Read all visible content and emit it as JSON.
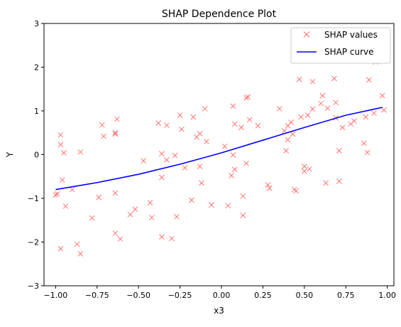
{
  "chart_data": {
    "type": "scatter",
    "title": "SHAP Dependence Plot",
    "xlabel": "x3",
    "ylabel": "Y",
    "xlim": [
      -1.07,
      1.04
    ],
    "ylim": [
      -3,
      3
    ],
    "xticks": [
      -1.0,
      -0.75,
      -0.5,
      -0.25,
      0.0,
      0.25,
      0.5,
      0.75,
      1.0
    ],
    "xtick_labels": [
      "−1.00",
      "−0.75",
      "−0.50",
      "−0.25",
      "0.00",
      "0.25",
      "0.50",
      "0.75",
      "1.00"
    ],
    "yticks": [
      -3,
      -2,
      -1,
      0,
      1,
      2,
      3
    ],
    "ytick_labels": [
      "−3",
      "−2",
      "−1",
      "0",
      "1",
      "2",
      "3"
    ],
    "grid": false,
    "legend_position": "top-right",
    "series": [
      {
        "name": "SHAP values",
        "kind": "scatter",
        "marker": "x",
        "color": "#ff6666",
        "points": [
          [
            -0.99,
            -0.9
          ],
          [
            -1.0,
            -0.92
          ],
          [
            -0.97,
            0.45
          ],
          [
            -0.97,
            0.23
          ],
          [
            -0.96,
            -0.58
          ],
          [
            -0.95,
            0.04
          ],
          [
            -0.94,
            -1.18
          ],
          [
            -0.97,
            -2.15
          ],
          [
            -0.9,
            -0.8
          ],
          [
            -0.87,
            -2.05
          ],
          [
            -0.85,
            -2.27
          ],
          [
            -0.85,
            0.06
          ],
          [
            -0.78,
            -1.45
          ],
          [
            -0.74,
            -0.98
          ],
          [
            -0.72,
            0.68
          ],
          [
            -0.71,
            0.42
          ],
          [
            -0.64,
            0.5
          ],
          [
            -0.64,
            0.47
          ],
          [
            -0.63,
            0.81
          ],
          [
            -0.64,
            -0.88
          ],
          [
            -0.64,
            -1.8
          ],
          [
            -0.61,
            -1.93
          ],
          [
            -0.55,
            -1.37
          ],
          [
            -0.52,
            -1.25
          ],
          [
            -0.47,
            -0.14
          ],
          [
            -0.43,
            -1.1
          ],
          [
            -0.42,
            -1.44
          ],
          [
            -0.38,
            0.72
          ],
          [
            -0.36,
            0.02
          ],
          [
            -0.36,
            -0.52
          ],
          [
            -0.36,
            -1.88
          ],
          [
            -0.33,
            -0.12
          ],
          [
            -0.33,
            0.67
          ],
          [
            -0.3,
            -1.92
          ],
          [
            -0.28,
            -0.02
          ],
          [
            -0.27,
            -1.42
          ],
          [
            -0.25,
            0.9
          ],
          [
            -0.24,
            0.58
          ],
          [
            -0.22,
            -0.3
          ],
          [
            -0.18,
            -1.04
          ],
          [
            -0.17,
            0.86
          ],
          [
            -0.15,
            0.4
          ],
          [
            -0.13,
            0.48
          ],
          [
            -0.13,
            -0.27
          ],
          [
            -0.12,
            -0.65
          ],
          [
            -0.1,
            1.05
          ],
          [
            -0.09,
            0.3
          ],
          [
            -0.06,
            -1.15
          ],
          [
            0.02,
            0.19
          ],
          [
            0.04,
            -1.17
          ],
          [
            0.06,
            -0.48
          ],
          [
            0.07,
            1.11
          ],
          [
            0.07,
            -0.01
          ],
          [
            0.08,
            0.7
          ],
          [
            0.08,
            -0.34
          ],
          [
            0.12,
            0.62
          ],
          [
            0.13,
            -0.95
          ],
          [
            0.13,
            -1.39
          ],
          [
            0.15,
            -0.2
          ],
          [
            0.15,
            1.3
          ],
          [
            0.16,
            1.32
          ],
          [
            0.17,
            0.8
          ],
          [
            0.22,
            0.66
          ],
          [
            0.28,
            -0.69
          ],
          [
            0.29,
            -0.77
          ],
          [
            0.35,
            1.05
          ],
          [
            0.38,
            0.54
          ],
          [
            0.39,
            0.09
          ],
          [
            0.4,
            0.66
          ],
          [
            0.4,
            0.34
          ],
          [
            0.42,
            0.74
          ],
          [
            0.43,
            0.47
          ],
          [
            0.44,
            -0.8
          ],
          [
            0.45,
            -0.83
          ],
          [
            0.47,
            1.72
          ],
          [
            0.48,
            0.86
          ],
          [
            0.5,
            -0.38
          ],
          [
            0.5,
            -0.27
          ],
          [
            0.52,
            0.9
          ],
          [
            0.53,
            -0.33
          ],
          [
            0.55,
            1.67
          ],
          [
            0.55,
            1.04
          ],
          [
            0.6,
            1.17
          ],
          [
            0.61,
            1.35
          ],
          [
            0.63,
            -0.65
          ],
          [
            0.64,
            1.06
          ],
          [
            0.68,
            1.74
          ],
          [
            0.69,
            0.84
          ],
          [
            0.69,
            1.19
          ],
          [
            0.71,
            0.09
          ],
          [
            0.71,
            -0.61
          ],
          [
            0.73,
            0.62
          ],
          [
            0.78,
            0.7
          ],
          [
            0.8,
            0.77
          ],
          [
            0.86,
            0.26
          ],
          [
            0.87,
            0.86
          ],
          [
            0.88,
            0.05
          ],
          [
            0.89,
            1.71
          ],
          [
            0.92,
            0.95
          ],
          [
            0.93,
            2.12
          ],
          [
            0.97,
            1.35
          ],
          [
            0.98,
            1.02
          ]
        ]
      },
      {
        "name": "SHAP curve",
        "kind": "line",
        "color": "#0000ff",
        "points": [
          [
            -1.0,
            -0.8
          ],
          [
            -0.75,
            -0.64
          ],
          [
            -0.5,
            -0.45
          ],
          [
            -0.25,
            -0.22
          ],
          [
            0.0,
            0.04
          ],
          [
            0.25,
            0.33
          ],
          [
            0.5,
            0.62
          ],
          [
            0.75,
            0.9
          ],
          [
            0.97,
            1.08
          ]
        ]
      }
    ]
  }
}
